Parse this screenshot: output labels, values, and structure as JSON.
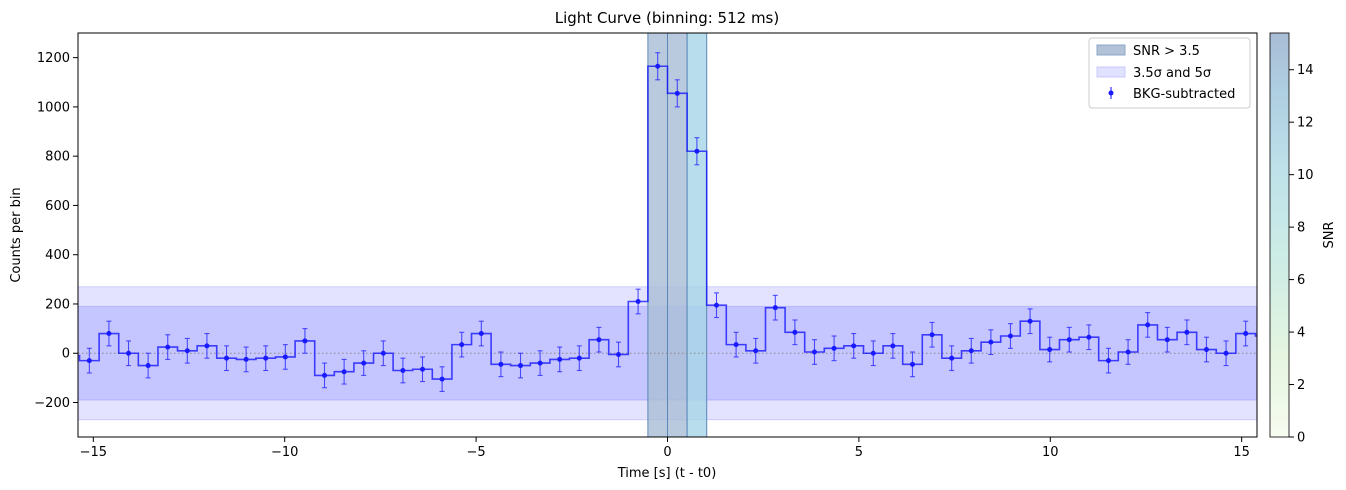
{
  "chart_data": {
    "type": "line",
    "title": "Light Curve (binning: 512 ms)",
    "xlabel": "Time [s] (t - t0)",
    "ylabel": "Counts per bin",
    "xlim": [
      -15.4,
      15.4
    ],
    "ylim": [
      -340,
      1300
    ],
    "xticks": [
      -15,
      -10,
      -5,
      0,
      5,
      10,
      15
    ],
    "xtick_labels": [
      "−15",
      "−10",
      "−5",
      "0",
      "5",
      "10",
      "15"
    ],
    "yticks": [
      -200,
      0,
      200,
      400,
      600,
      800,
      1000,
      1200
    ],
    "ytick_labels": [
      "−200",
      "0",
      "200",
      "400",
      "600",
      "800",
      "1000",
      "1200"
    ],
    "bin_width": 0.512,
    "series": [
      {
        "name": "BKG-subtracted",
        "color": "#0000ff",
        "x": [
          -15.616,
          -15.104,
          -14.592,
          -14.08,
          -13.568,
          -13.056,
          -12.544,
          -12.032,
          -11.52,
          -11.008,
          -10.496,
          -9.984,
          -9.472,
          -8.96,
          -8.448,
          -7.936,
          -7.424,
          -6.912,
          -6.4,
          -5.888,
          -5.376,
          -4.864,
          -4.352,
          -3.84,
          -3.328,
          -2.816,
          -2.304,
          -1.792,
          -1.28,
          -0.768,
          -0.256,
          0.256,
          0.768,
          1.28,
          1.792,
          2.304,
          2.816,
          3.328,
          3.84,
          4.352,
          4.864,
          5.376,
          5.888,
          6.4,
          6.912,
          7.424,
          7.936,
          8.448,
          8.96,
          9.472,
          9.984,
          10.496,
          11.008,
          11.52,
          12.032,
          12.544,
          13.056,
          13.568,
          14.08,
          14.592,
          15.104,
          15.616
        ],
        "y": [
          -10,
          -30,
          80,
          0,
          -50,
          25,
          10,
          30,
          -20,
          -25,
          -20,
          -15,
          50,
          -90,
          -75,
          -40,
          0,
          -70,
          -65,
          -105,
          35,
          80,
          -45,
          -50,
          -40,
          -25,
          -20,
          55,
          -5,
          210,
          1165,
          1055,
          820,
          195,
          35,
          10,
          185,
          85,
          5,
          20,
          30,
          0,
          30,
          -45,
          75,
          -20,
          10,
          45,
          70,
          130,
          15,
          55,
          65,
          -30,
          5,
          115,
          55,
          85,
          15,
          0,
          80,
          70
        ],
        "errors": [
          50,
          50,
          50,
          50,
          50,
          50,
          50,
          50,
          50,
          50,
          50,
          50,
          50,
          50,
          50,
          50,
          50,
          50,
          50,
          50,
          50,
          50,
          50,
          50,
          50,
          50,
          50,
          50,
          50,
          50,
          55,
          55,
          55,
          50,
          50,
          50,
          50,
          50,
          50,
          50,
          50,
          50,
          50,
          50,
          50,
          50,
          50,
          50,
          50,
          50,
          50,
          50,
          50,
          50,
          50,
          50,
          50,
          50,
          50,
          50,
          50,
          50
        ]
      }
    ],
    "bands": {
      "sigma5": [
        -270,
        270
      ],
      "sigma35": [
        -190,
        190
      ]
    },
    "snr_regions": [
      {
        "x0": -0.512,
        "x1": 0.0,
        "snr": 13.6
      },
      {
        "x0": 0.0,
        "x1": 0.512,
        "snr": 12.6
      },
      {
        "x0": 0.512,
        "x1": 1.024,
        "snr": 10.6
      }
    ],
    "legend": {
      "position": "top-right",
      "entries": [
        "SNR > 3.5",
        "3.5σ and 5σ",
        "BKG-subtracted"
      ]
    },
    "colorbar": {
      "label": "SNR",
      "range": [
        0,
        15.4
      ],
      "ticks": [
        0,
        2,
        4,
        6,
        8,
        10,
        12,
        14
      ],
      "tick_labels": [
        "0",
        "2",
        "4",
        "6",
        "8",
        "10",
        "12",
        "14"
      ],
      "colormap": [
        "#f7fcf0",
        "#e0f3db",
        "#ccebc5",
        "#a8ddb5",
        "#7bccc4",
        "#4eb3d3",
        "#9ebcda",
        "#8c96c6"
      ]
    },
    "grid": false
  }
}
